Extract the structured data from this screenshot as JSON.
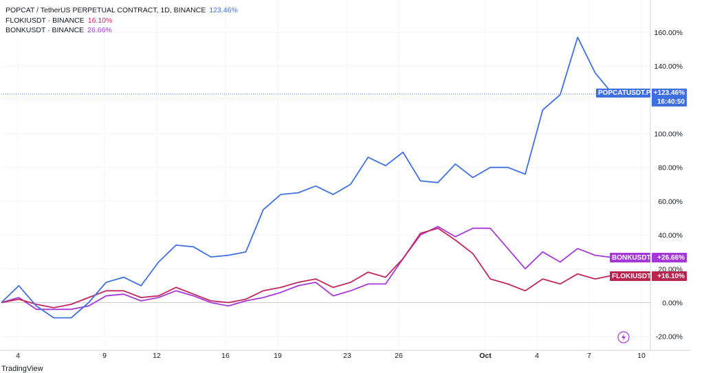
{
  "legend": {
    "rows": [
      {
        "label": "POPCAT / TetherUS PERPETUAL CONTRACT, 1D, BINANCE",
        "value": "123.46%",
        "color": "#3d6fe0"
      },
      {
        "label": "FLOKIUSDT · BINANCE",
        "value": "16.10%",
        "color": "#c2245c"
      },
      {
        "label": "BONKUSDT · BINANCE",
        "value": "26.66%",
        "color": "#a537d8"
      }
    ]
  },
  "price_tags": {
    "popcat": {
      "name": "POPCATUSDT.P",
      "value": "+123.46%",
      "time": "16:40:50"
    },
    "bonk": {
      "name": "BONKUSDT",
      "value": "+26.66%"
    },
    "floki": {
      "name": "FLOKIUSDT",
      "value": "+16.10%"
    }
  },
  "watermark": "TradingView",
  "chart_data": {
    "type": "line",
    "x": [
      "Sep 3",
      "Sep 4",
      "Sep 5",
      "Sep 6",
      "Sep 7",
      "Sep 8",
      "Sep 9",
      "Sep 10",
      "Sep 11",
      "Sep 12",
      "Sep 13",
      "Sep 14",
      "Sep 15",
      "Sep 16",
      "Sep 17",
      "Sep 18",
      "Sep 19",
      "Sep 20",
      "Sep 21",
      "Sep 22",
      "Sep 23",
      "Sep 24",
      "Sep 25",
      "Sep 26",
      "Sep 27",
      "Sep 28",
      "Sep 29",
      "Sep 30",
      "Oct 1",
      "Oct 2",
      "Oct 3",
      "Oct 4",
      "Oct 5",
      "Oct 6",
      "Oct 7",
      "Oct 8"
    ],
    "x_tick_labels": [
      "4",
      "9",
      "12",
      "16",
      "19",
      "23",
      "26",
      "Oct",
      "4",
      "7",
      "10"
    ],
    "y_tick_labels": [
      "160.00%",
      "140.00%",
      "120.00%",
      "100.00%",
      "80.00%",
      "60.00%",
      "40.00%",
      "20.00%",
      "0.00%",
      "-20.00%"
    ],
    "y_unit": "%",
    "ylim": [
      -25,
      175
    ],
    "grid": true,
    "legend_position": "top-left",
    "series": [
      {
        "name": "POPCATUSDT.P",
        "color": "#3d6fe0",
        "values": [
          0,
          10,
          -2,
          -9,
          -9,
          0,
          12,
          15,
          10,
          24,
          34,
          33,
          27,
          28,
          30,
          55,
          64,
          65,
          69,
          64,
          70,
          86,
          81,
          89,
          72,
          71,
          82,
          74,
          80,
          80,
          76,
          114,
          123,
          157,
          136,
          123.46
        ]
      },
      {
        "name": "FLOKIUSDT",
        "color": "#c2245c",
        "values": [
          0,
          2,
          -1,
          -3,
          -1,
          3,
          7,
          7,
          3,
          4,
          9,
          5,
          1,
          0,
          2,
          7,
          9,
          12,
          14,
          9,
          12,
          18,
          15,
          26,
          41,
          44,
          37,
          29,
          14,
          11,
          7,
          14,
          11,
          17,
          14,
          16.1
        ]
      },
      {
        "name": "BONKUSDT",
        "color": "#a537d8",
        "values": [
          0,
          3,
          -4,
          -4,
          -4,
          -2,
          4,
          5,
          1,
          3,
          7,
          4,
          0,
          -2,
          1,
          3,
          6,
          10,
          12,
          4,
          7,
          11,
          11,
          26,
          40,
          45,
          39,
          44,
          44,
          32,
          20,
          30,
          24,
          32,
          28,
          26.66
        ]
      }
    ],
    "last_value_line": 123.46
  }
}
